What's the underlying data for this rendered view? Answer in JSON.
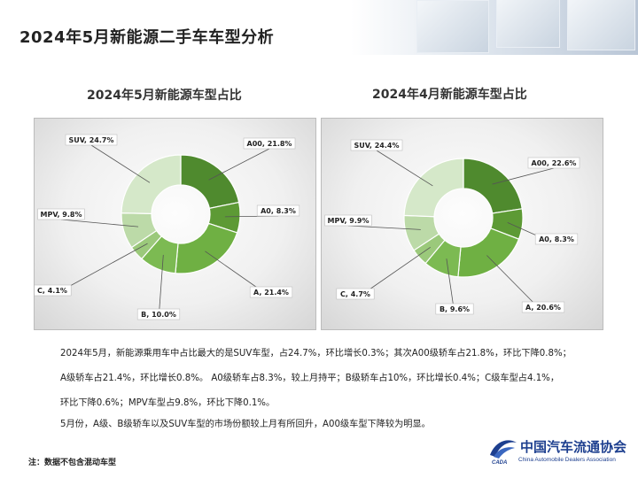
{
  "page": {
    "title": "2024年5月新能源二手车车型分析"
  },
  "chart_data": [
    {
      "id": "may",
      "type": "pie",
      "donut": true,
      "title": "2024年5月新能源车型占比",
      "categories": [
        "A00",
        "A0",
        "A",
        "B",
        "C",
        "MPV",
        "SUV"
      ],
      "values": [
        21.8,
        8.3,
        21.4,
        10.0,
        4.1,
        9.8,
        24.7
      ],
      "labels": [
        "A00, 21.8%",
        "A0, 8.3%",
        "A, 21.4%",
        "B, 10.0%",
        "C, 4.1%",
        "MPV, 9.8%",
        "SUV, 24.7%"
      ],
      "colors": [
        "#4f8a2e",
        "#5d9a35",
        "#6fb043",
        "#7cba52",
        "#9bc97b",
        "#bcdaa8",
        "#d5e8c9"
      ]
    },
    {
      "id": "apr",
      "type": "pie",
      "donut": true,
      "title": "2024年4月新能源车型占比",
      "categories": [
        "A00",
        "A0",
        "A",
        "B",
        "C",
        "MPV",
        "SUV"
      ],
      "values": [
        22.6,
        8.3,
        20.6,
        9.6,
        4.7,
        9.9,
        24.4
      ],
      "labels": [
        "A00, 22.6%",
        "A0, 8.3%",
        "A, 20.6%",
        "B, 9.6%",
        "C, 4.7%",
        "MPV, 9.9%",
        "SUV, 24.4%"
      ],
      "colors": [
        "#4f8a2e",
        "#5d9a35",
        "#6fb043",
        "#7cba52",
        "#9bc97b",
        "#bcdaa8",
        "#d5e8c9"
      ]
    }
  ],
  "description": {
    "line1": "2024年5月，新能源乘用车中占比最大的是SUV车型，占24.7%，环比增长0.3%；其次A00级轿车占21.8%，环比下降0.8%；",
    "line2": "A级轿车占21.4%，环比增长0.8%。 A0级轿车占8.3%，较上月持平；B级轿车占10%，环比增长0.4%；C级车型占4.1%，",
    "line3": "环比下降0.6%；MPV车型占9.8%，环比下降0.1%。",
    "line4": "5月份，A级、B级轿车以及SUV车型的市场份额较上月有所回升，A00级车型下降较为明显。"
  },
  "footnote": "注：数据不包含混动车型",
  "logo": {
    "name_cn": "中国汽车流通协会",
    "name_en": "China Automobile Dealers Association",
    "mark_text": "CADA"
  }
}
